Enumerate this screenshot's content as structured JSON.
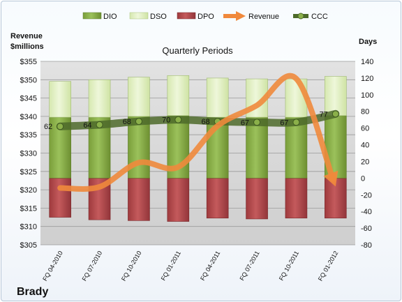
{
  "chart_data": {
    "type": "bar",
    "title": "Quarterly Periods",
    "company": "Brady",
    "y_left_label": [
      "Revenue",
      "$millions"
    ],
    "y_right_label": "Days",
    "categories": [
      "FQ 04-2010",
      "FQ 07-2010",
      "FQ 10-2010",
      "FQ 01-2011",
      "FQ 04-2011",
      "FQ 07-2011",
      "FQ 10-2011",
      "FQ 01-2012"
    ],
    "left_axis": {
      "ylim": [
        305,
        355
      ],
      "ticks": [
        "$305",
        "$310",
        "$315",
        "$320",
        "$325",
        "$330",
        "$335",
        "$340",
        "$345",
        "$350",
        "$355"
      ]
    },
    "right_axis": {
      "ylim": [
        -80,
        140
      ],
      "ticks": [
        "-80",
        "-60",
        "-40",
        "-20",
        "0",
        "20",
        "40",
        "60",
        "80",
        "100",
        "120",
        "140"
      ]
    },
    "series": [
      {
        "name": "DIO",
        "type": "bar",
        "axis": "right",
        "color": "#8cb04a",
        "values": [
          73,
          73,
          74,
          75,
          73,
          73,
          73,
          75
        ]
      },
      {
        "name": "DSO",
        "type": "bar",
        "axis": "right",
        "color": "#e2efc6",
        "values": [
          43,
          45,
          47,
          48,
          47,
          46,
          46,
          47
        ]
      },
      {
        "name": "DPO",
        "type": "bar",
        "axis": "right",
        "color": "#b84b4e",
        "values": [
          -47,
          -50,
          -51,
          -52,
          -48,
          -49,
          -48,
          -48
        ]
      },
      {
        "name": "Revenue",
        "type": "line",
        "axis": "left",
        "color": "#f0893c",
        "values": [
          320.5,
          320.8,
          327.4,
          326.2,
          337.4,
          343.0,
          350.3,
          320.9
        ]
      },
      {
        "name": "CCC",
        "type": "line",
        "axis": "right",
        "color": "#4d6a2a",
        "values": [
          62,
          64,
          68,
          70,
          68,
          67,
          67,
          77
        ]
      }
    ],
    "ccc_labels": [
      "62",
      "64",
      "68",
      "70",
      "68",
      "67",
      "67",
      "77"
    ],
    "legend_position": "top",
    "grid": true
  }
}
